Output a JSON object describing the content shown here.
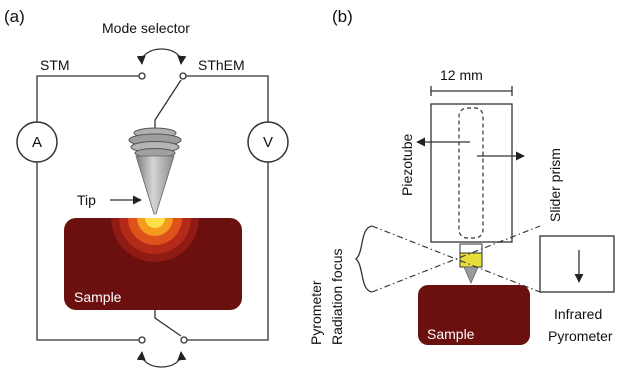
{
  "panel_a": {
    "label": "(a)",
    "mode_selector": "Mode selector",
    "stm": "STM",
    "sthem": "SThEM",
    "ammeter": "A",
    "voltmeter": "V",
    "tip": "Tip",
    "sample": "Sample"
  },
  "panel_b": {
    "label": "(b)",
    "dimension": "12 mm",
    "piezotube": "Piezotube",
    "slider_prism": "Slider prism",
    "radiation_focus": "Radiation focus",
    "pyrometer_label": "Pyrometer",
    "sample": "Sample",
    "infrared_line1": "Infrared",
    "infrared_line2": "Pyrometer"
  },
  "colors": {
    "sample": "#6b0f0f",
    "heat_outer": "#b32a18",
    "heat_mid": "#e0521c",
    "heat_inner": "#f39a1f",
    "heat_core": "#ffe04a",
    "tip": "#9a9a9a"
  }
}
